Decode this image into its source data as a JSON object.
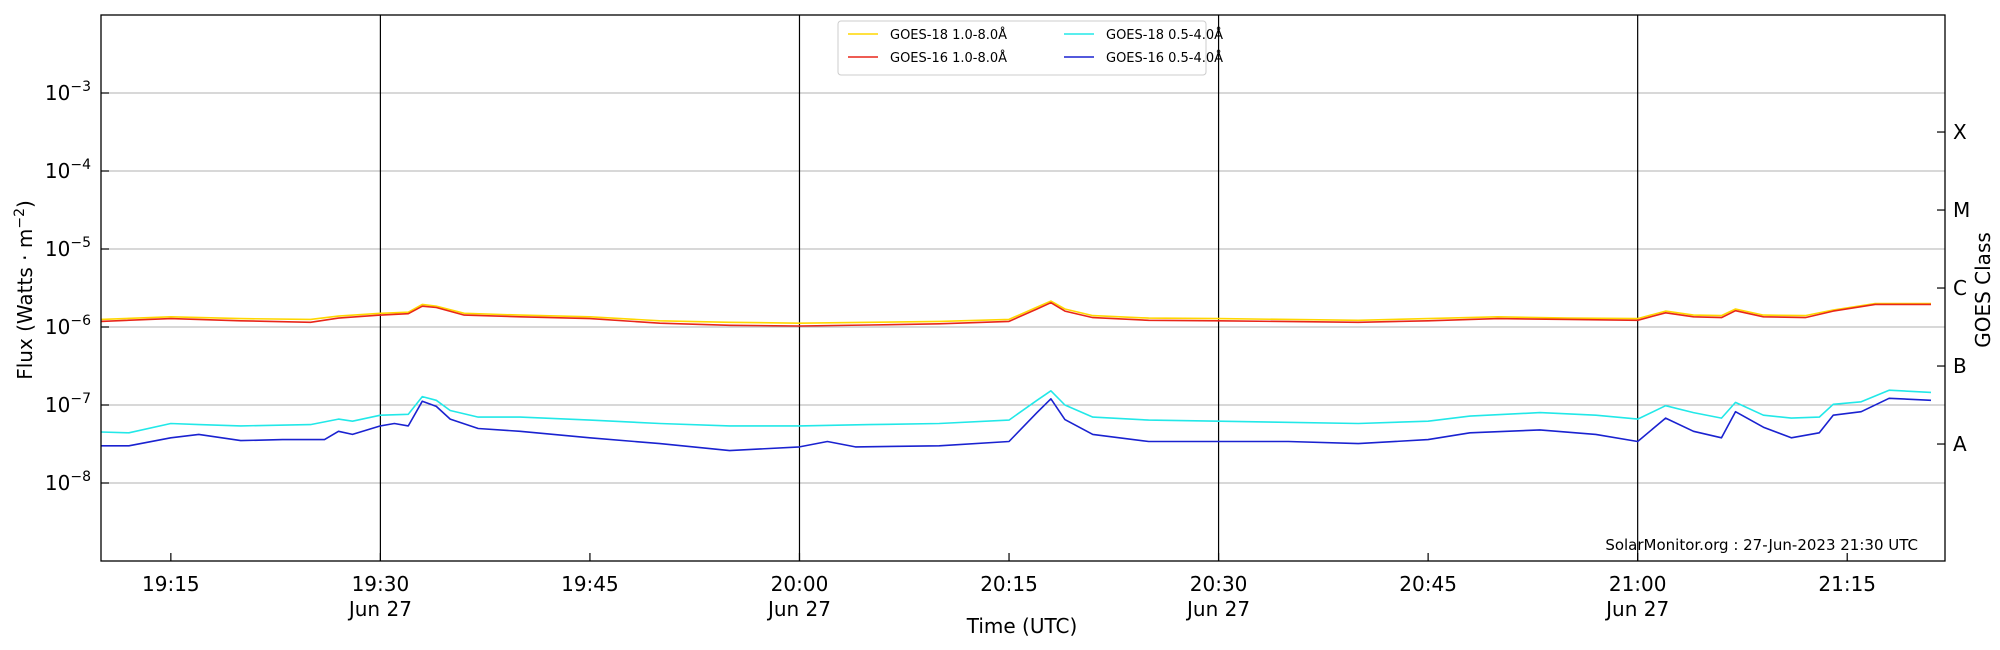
{
  "chart_data": {
    "type": "line",
    "xlabel": "Time (UTC)",
    "ylabel_main": "Flux (Watts · m",
    "ylabel_sup": "−2",
    "ylabel_close": ")",
    "ylabel_right": "GOES Class",
    "credit": "SolarMonitor.org : 27-Jun-2023 21:30 UTC",
    "y_scale": "log",
    "ylim": [
      1e-09,
      0.01
    ],
    "xlim": [
      "2023-06-27 19:10",
      "2023-06-27 21:22"
    ],
    "grid": "horizontal",
    "legend_position": "top-center",
    "y_ticks": [
      {
        "value": 1e-08,
        "base": "10",
        "exp": "−8"
      },
      {
        "value": 1e-07,
        "base": "10",
        "exp": "−7"
      },
      {
        "value": 1e-06,
        "base": "10",
        "exp": "−6"
      },
      {
        "value": 1e-05,
        "base": "10",
        "exp": "−5"
      },
      {
        "value": 0.0001,
        "base": "10",
        "exp": "−4"
      },
      {
        "value": 0.001,
        "base": "10",
        "exp": "−3"
      }
    ],
    "x_ticks": [
      {
        "time": "19:15",
        "label": "19:15",
        "sub": ""
      },
      {
        "time": "19:30",
        "label": "19:30",
        "sub": "Jun 27"
      },
      {
        "time": "19:45",
        "label": "19:45",
        "sub": ""
      },
      {
        "time": "20:00",
        "label": "20:00",
        "sub": "Jun 27"
      },
      {
        "time": "20:15",
        "label": "20:15",
        "sub": ""
      },
      {
        "time": "20:30",
        "label": "20:30",
        "sub": "Jun 27"
      },
      {
        "time": "20:45",
        "label": "20:45",
        "sub": ""
      },
      {
        "time": "21:00",
        "label": "21:00",
        "sub": "Jun 27"
      },
      {
        "time": "21:15",
        "label": "21:15",
        "sub": ""
      }
    ],
    "vlines": [
      "19:30",
      "20:00",
      "20:30",
      "21:00"
    ],
    "goes_classes": [
      {
        "label": "A",
        "value": 3.16e-08
      },
      {
        "label": "B",
        "value": 3.16e-07
      },
      {
        "label": "C",
        "value": 3.16e-06
      },
      {
        "label": "M",
        "value": 3.16e-05
      },
      {
        "label": "X",
        "value": 0.000316
      }
    ],
    "series": [
      {
        "name": "GOES-18 1.0-8.0Å",
        "color": "#ffd700",
        "points": [
          [
            "19:10",
            1.25e-06
          ],
          [
            "19:15",
            1.35e-06
          ],
          [
            "19:20",
            1.28e-06
          ],
          [
            "19:25",
            1.25e-06
          ],
          [
            "19:27",
            1.38e-06
          ],
          [
            "19:30",
            1.5e-06
          ],
          [
            "19:32",
            1.55e-06
          ],
          [
            "19:33",
            1.95e-06
          ],
          [
            "19:34",
            1.85e-06
          ],
          [
            "19:36",
            1.5e-06
          ],
          [
            "19:40",
            1.42e-06
          ],
          [
            "19:45",
            1.35e-06
          ],
          [
            "19:50",
            1.2e-06
          ],
          [
            "19:55",
            1.15e-06
          ],
          [
            "20:00",
            1.12e-06
          ],
          [
            "20:05",
            1.15e-06
          ],
          [
            "20:10",
            1.18e-06
          ],
          [
            "20:15",
            1.25e-06
          ],
          [
            "20:17",
            1.8e-06
          ],
          [
            "20:18",
            2.15e-06
          ],
          [
            "20:19",
            1.7e-06
          ],
          [
            "20:21",
            1.4e-06
          ],
          [
            "20:25",
            1.3e-06
          ],
          [
            "20:30",
            1.28e-06
          ],
          [
            "20:40",
            1.22e-06
          ],
          [
            "20:45",
            1.28e-06
          ],
          [
            "20:50",
            1.35e-06
          ],
          [
            "20:55",
            1.3e-06
          ],
          [
            "21:00",
            1.28e-06
          ],
          [
            "21:02",
            1.6e-06
          ],
          [
            "21:04",
            1.42e-06
          ],
          [
            "21:06",
            1.4e-06
          ],
          [
            "21:07",
            1.7e-06
          ],
          [
            "21:09",
            1.42e-06
          ],
          [
            "21:12",
            1.4e-06
          ],
          [
            "21:14",
            1.65e-06
          ],
          [
            "21:17",
            2e-06
          ],
          [
            "21:21",
            2e-06
          ]
        ]
      },
      {
        "name": "GOES-16 1.0-8.0Å",
        "color": "#e8261a",
        "points": [
          [
            "19:10",
            1.18e-06
          ],
          [
            "19:15",
            1.28e-06
          ],
          [
            "19:20",
            1.2e-06
          ],
          [
            "19:25",
            1.15e-06
          ],
          [
            "19:27",
            1.3e-06
          ],
          [
            "19:30",
            1.42e-06
          ],
          [
            "19:32",
            1.48e-06
          ],
          [
            "19:33",
            1.85e-06
          ],
          [
            "19:34",
            1.78e-06
          ],
          [
            "19:36",
            1.42e-06
          ],
          [
            "19:40",
            1.35e-06
          ],
          [
            "19:45",
            1.28e-06
          ],
          [
            "19:50",
            1.12e-06
          ],
          [
            "19:55",
            1.05e-06
          ],
          [
            "20:00",
            1.03e-06
          ],
          [
            "20:05",
            1.06e-06
          ],
          [
            "20:10",
            1.1e-06
          ],
          [
            "20:15",
            1.18e-06
          ],
          [
            "20:17",
            1.7e-06
          ],
          [
            "20:18",
            2.05e-06
          ],
          [
            "20:19",
            1.6e-06
          ],
          [
            "20:21",
            1.32e-06
          ],
          [
            "20:25",
            1.22e-06
          ],
          [
            "20:30",
            1.2e-06
          ],
          [
            "20:40",
            1.15e-06
          ],
          [
            "20:45",
            1.2e-06
          ],
          [
            "20:50",
            1.28e-06
          ],
          [
            "20:55",
            1.25e-06
          ],
          [
            "21:00",
            1.22e-06
          ],
          [
            "21:02",
            1.52e-06
          ],
          [
            "21:04",
            1.35e-06
          ],
          [
            "21:06",
            1.32e-06
          ],
          [
            "21:07",
            1.62e-06
          ],
          [
            "21:09",
            1.35e-06
          ],
          [
            "21:12",
            1.32e-06
          ],
          [
            "21:14",
            1.6e-06
          ],
          [
            "21:17",
            1.95e-06
          ],
          [
            "21:21",
            1.95e-06
          ]
        ]
      },
      {
        "name": "GOES-18 0.5-4.0Å",
        "color": "#22e8e8",
        "points": [
          [
            "19:10",
            4.5e-08
          ],
          [
            "19:12",
            4.4e-08
          ],
          [
            "19:15",
            5.8e-08
          ],
          [
            "19:17",
            5.6e-08
          ],
          [
            "19:20",
            5.4e-08
          ],
          [
            "19:25",
            5.6e-08
          ],
          [
            "19:27",
            6.6e-08
          ],
          [
            "19:28",
            6.2e-08
          ],
          [
            "19:30",
            7.4e-08
          ],
          [
            "19:32",
            7.6e-08
          ],
          [
            "19:33",
            1.28e-07
          ],
          [
            "19:34",
            1.15e-07
          ],
          [
            "19:35",
            8.5e-08
          ],
          [
            "19:37",
            7e-08
          ],
          [
            "19:40",
            7e-08
          ],
          [
            "19:45",
            6.4e-08
          ],
          [
            "19:50",
            5.8e-08
          ],
          [
            "19:55",
            5.4e-08
          ],
          [
            "20:00",
            5.4e-08
          ],
          [
            "20:05",
            5.6e-08
          ],
          [
            "20:10",
            5.8e-08
          ],
          [
            "20:15",
            6.4e-08
          ],
          [
            "20:17",
            1.15e-07
          ],
          [
            "20:18",
            1.52e-07
          ],
          [
            "20:19",
            1e-07
          ],
          [
            "20:21",
            7e-08
          ],
          [
            "20:25",
            6.4e-08
          ],
          [
            "20:30",
            6.2e-08
          ],
          [
            "20:40",
            5.8e-08
          ],
          [
            "20:45",
            6.2e-08
          ],
          [
            "20:48",
            7.2e-08
          ],
          [
            "20:53",
            8e-08
          ],
          [
            "20:57",
            7.4e-08
          ],
          [
            "21:00",
            6.6e-08
          ],
          [
            "21:02",
            9.8e-08
          ],
          [
            "21:04",
            8e-08
          ],
          [
            "21:06",
            6.8e-08
          ],
          [
            "21:07",
            1.08e-07
          ],
          [
            "21:09",
            7.4e-08
          ],
          [
            "21:11",
            6.8e-08
          ],
          [
            "21:13",
            7e-08
          ],
          [
            "21:14",
            1.02e-07
          ],
          [
            "21:16",
            1.1e-07
          ],
          [
            "21:18",
            1.55e-07
          ],
          [
            "21:21",
            1.45e-07
          ]
        ]
      },
      {
        "name": "GOES-16 0.5-4.0Å",
        "color": "#1a22d0",
        "points": [
          [
            "19:10",
            3e-08
          ],
          [
            "19:12",
            3e-08
          ],
          [
            "19:15",
            3.8e-08
          ],
          [
            "19:17",
            4.2e-08
          ],
          [
            "19:20",
            3.5e-08
          ],
          [
            "19:23",
            3.6e-08
          ],
          [
            "19:26",
            3.6e-08
          ],
          [
            "19:27",
            4.6e-08
          ],
          [
            "19:28",
            4.2e-08
          ],
          [
            "19:30",
            5.4e-08
          ],
          [
            "19:31",
            5.8e-08
          ],
          [
            "19:32",
            5.4e-08
          ],
          [
            "19:33",
            1.12e-07
          ],
          [
            "19:34",
            9.6e-08
          ],
          [
            "19:35",
            6.6e-08
          ],
          [
            "19:37",
            5e-08
          ],
          [
            "19:40",
            4.6e-08
          ],
          [
            "19:45",
            3.8e-08
          ],
          [
            "19:50",
            3.2e-08
          ],
          [
            "19:55",
            2.6e-08
          ],
          [
            "20:00",
            2.9e-08
          ],
          [
            "20:02",
            3.4e-08
          ],
          [
            "20:04",
            2.9e-08
          ],
          [
            "20:10",
            3e-08
          ],
          [
            "20:15",
            3.4e-08
          ],
          [
            "20:17",
            8e-08
          ],
          [
            "20:18",
            1.2e-07
          ],
          [
            "20:19",
            6.5e-08
          ],
          [
            "20:21",
            4.2e-08
          ],
          [
            "20:25",
            3.4e-08
          ],
          [
            "20:30",
            3.4e-08
          ],
          [
            "20:35",
            3.4e-08
          ],
          [
            "20:40",
            3.2e-08
          ],
          [
            "20:45",
            3.6e-08
          ],
          [
            "20:48",
            4.4e-08
          ],
          [
            "20:53",
            4.8e-08
          ],
          [
            "20:57",
            4.2e-08
          ],
          [
            "21:00",
            3.4e-08
          ],
          [
            "21:02",
            6.8e-08
          ],
          [
            "21:04",
            4.6e-08
          ],
          [
            "21:06",
            3.8e-08
          ],
          [
            "21:07",
            8.2e-08
          ],
          [
            "21:09",
            5.2e-08
          ],
          [
            "21:11",
            3.8e-08
          ],
          [
            "21:13",
            4.4e-08
          ],
          [
            "21:14",
            7.4e-08
          ],
          [
            "21:16",
            8.2e-08
          ],
          [
            "21:18",
            1.22e-07
          ],
          [
            "21:21",
            1.15e-07
          ]
        ]
      }
    ]
  }
}
